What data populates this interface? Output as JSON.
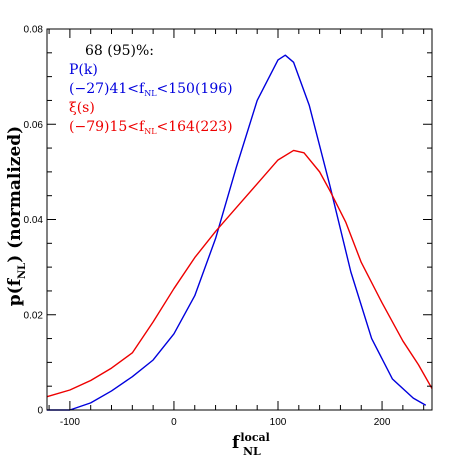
{
  "chart_data": {
    "type": "line",
    "title": "",
    "xlabel": {
      "main": "f",
      "sub": "NL",
      "sup": "local"
    },
    "ylabel": {
      "prefix": "p(f",
      "sub": "NL",
      "suffix": ")  (normalized)"
    },
    "xlim": [
      -122,
      248
    ],
    "ylim": [
      0,
      0.08
    ],
    "xticks": [
      -100,
      0,
      100,
      200
    ],
    "xtick_labels": [
      "-100",
      "0",
      "100",
      "200"
    ],
    "yticks": [
      0,
      0.02,
      0.04,
      0.06,
      0.08
    ],
    "ytick_labels": [
      "0",
      "0.02",
      "0.04",
      "0.06",
      "0.08"
    ],
    "grid": false,
    "legend_position": "top-left",
    "legend": {
      "header": "68 (95)%:",
      "entries": [
        {
          "label": "P(k)",
          "range": [
            "(−27)41<f",
            "NL",
            "<150(196)"
          ],
          "color": "#0000dd"
        },
        {
          "label": "ξ(s)",
          "range": [
            "(−79)15<f",
            "NL",
            "<164(223)"
          ],
          "color": "#ee0000"
        }
      ]
    },
    "series": [
      {
        "name": "P(k)",
        "color": "#0000dd",
        "points": [
          [
            -122,
            0
          ],
          [
            -100,
            0
          ],
          [
            -80,
            0.0015
          ],
          [
            -60,
            0.004
          ],
          [
            -40,
            0.007
          ],
          [
            -20,
            0.0105
          ],
          [
            0,
            0.016
          ],
          [
            20,
            0.024
          ],
          [
            40,
            0.036
          ],
          [
            60,
            0.051
          ],
          [
            80,
            0.065
          ],
          [
            100,
            0.0735
          ],
          [
            107,
            0.0745
          ],
          [
            115,
            0.073
          ],
          [
            130,
            0.064
          ],
          [
            150,
            0.047
          ],
          [
            170,
            0.029
          ],
          [
            190,
            0.015
          ],
          [
            210,
            0.0065
          ],
          [
            230,
            0.0025
          ],
          [
            242,
            0.001
          ]
        ]
      },
      {
        "name": "ξ(s)",
        "color": "#ee0000",
        "points": [
          [
            -122,
            0.0028
          ],
          [
            -100,
            0.0042
          ],
          [
            -80,
            0.0062
          ],
          [
            -60,
            0.0088
          ],
          [
            -40,
            0.012
          ],
          [
            -20,
            0.0185
          ],
          [
            0,
            0.0255
          ],
          [
            20,
            0.032
          ],
          [
            40,
            0.0375
          ],
          [
            60,
            0.0425
          ],
          [
            80,
            0.0475
          ],
          [
            100,
            0.0525
          ],
          [
            115,
            0.0545
          ],
          [
            125,
            0.054
          ],
          [
            140,
            0.05
          ],
          [
            150,
            0.046
          ],
          [
            165,
            0.0395
          ],
          [
            180,
            0.031
          ],
          [
            200,
            0.0225
          ],
          [
            220,
            0.0145
          ],
          [
            235,
            0.0095
          ],
          [
            248,
            0.0045
          ]
        ]
      }
    ]
  }
}
